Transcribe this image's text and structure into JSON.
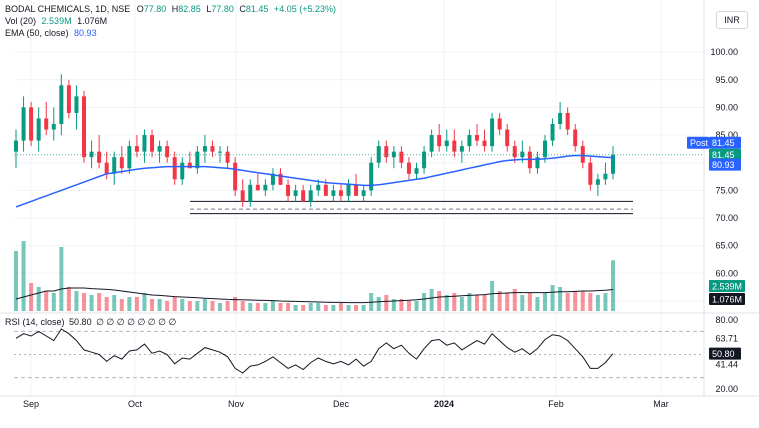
{
  "header": {
    "symbol": "BODAL CHEMICALS, 1D, NSE",
    "open_label": "O",
    "open": "77.80",
    "high_label": "H",
    "high": "82.85",
    "low_label": "L",
    "low": "77.80",
    "close_label": "C",
    "close": "81.45",
    "change": "+4.05 (+5.23%)",
    "vol_label": "Vol (20)",
    "vol_value": "2.539M",
    "vol_ma": "1.076M",
    "ema_label": "EMA (50, close)",
    "ema_value": "80.93",
    "rsi_label": "RSI (14, close)",
    "rsi_value": "50.80",
    "rsi_extra": "∅ ∅ ∅ ∅ ∅ ∅ ∅ ∅",
    "currency": "INR"
  },
  "colors": {
    "up": "#089981",
    "down": "#f23645",
    "ema": "#2962ff",
    "grid": "#f0f3fa",
    "text": "#131722",
    "badge_dark": "#131722"
  },
  "chart_data": [
    {
      "type": "candlestick",
      "name": "price",
      "y_ticks": [
        70,
        75,
        80,
        85,
        90,
        95,
        100,
        55,
        60,
        65
      ],
      "ylim": [
        53,
        104
      ],
      "x_labels": [
        "Sep",
        "Oct",
        "Nov",
        "Dec",
        "2024",
        "Feb",
        "Mar"
      ],
      "post_label": "Post",
      "post_value": "81.45",
      "last_close": "81.45",
      "ema_last": "80.93",
      "support_lines": [
        73.0,
        70.8
      ],
      "dashed_line": 71.6,
      "candles": [
        [
          82,
          86,
          79,
          84
        ],
        [
          84,
          92,
          82,
          90
        ],
        [
          90,
          91,
          83,
          84
        ],
        [
          84,
          90,
          82,
          88
        ],
        [
          88,
          91,
          85,
          86
        ],
        [
          86,
          90,
          84,
          87
        ],
        [
          87,
          96,
          85,
          94
        ],
        [
          94,
          95,
          88,
          89
        ],
        [
          89,
          94,
          86,
          92
        ],
        [
          92,
          93,
          80,
          81
        ],
        [
          81,
          84,
          79,
          82
        ],
        [
          82,
          85,
          79,
          80
        ],
        [
          80,
          82,
          77,
          78
        ],
        [
          78,
          82,
          76,
          81
        ],
        [
          81,
          83,
          78,
          79
        ],
        [
          79,
          84,
          78,
          83
        ],
        [
          83,
          85,
          81,
          82
        ],
        [
          82,
          86,
          80,
          85
        ],
        [
          85,
          86,
          81,
          82
        ],
        [
          82,
          84,
          80,
          83
        ],
        [
          83,
          84,
          80,
          81
        ],
        [
          81,
          82,
          76,
          77
        ],
        [
          77,
          81,
          76,
          80
        ],
        [
          80,
          82,
          79,
          79
        ],
        [
          79,
          83,
          78,
          82
        ],
        [
          82,
          85,
          80,
          83
        ],
        [
          83,
          84,
          81,
          82
        ],
        [
          82,
          83,
          80,
          82
        ],
        [
          82,
          83,
          79,
          80
        ],
        [
          80,
          81,
          74,
          75
        ],
        [
          75,
          77,
          72,
          73
        ],
        [
          73,
          77,
          72,
          76
        ],
        [
          76,
          78,
          75,
          75
        ],
        [
          75,
          77,
          74,
          76
        ],
        [
          76,
          79,
          75,
          78
        ],
        [
          78,
          79,
          76,
          76
        ],
        [
          76,
          77,
          73,
          74
        ],
        [
          74,
          76,
          73,
          75
        ],
        [
          75,
          76,
          73,
          73
        ],
        [
          73,
          76,
          72,
          75
        ],
        [
          75,
          77,
          74,
          76
        ],
        [
          76,
          77,
          74,
          74
        ],
        [
          74,
          76,
          73,
          75
        ],
        [
          75,
          76,
          73,
          74
        ],
        [
          74,
          77,
          73,
          76
        ],
        [
          76,
          78,
          74,
          74
        ],
        [
          74,
          76,
          73,
          75
        ],
        [
          75,
          81,
          74,
          80
        ],
        [
          80,
          84,
          79,
          83
        ],
        [
          83,
          84,
          80,
          81
        ],
        [
          81,
          83,
          79,
          82
        ],
        [
          82,
          83,
          79,
          80
        ],
        [
          80,
          81,
          77,
          78
        ],
        [
          78,
          80,
          77,
          79
        ],
        [
          79,
          83,
          78,
          82
        ],
        [
          82,
          86,
          81,
          85
        ],
        [
          85,
          87,
          82,
          83
        ],
        [
          83,
          86,
          82,
          84
        ],
        [
          84,
          86,
          81,
          82
        ],
        [
          82,
          84,
          80,
          83
        ],
        [
          83,
          86,
          82,
          85
        ],
        [
          85,
          87,
          83,
          84
        ],
        [
          84,
          86,
          82,
          83
        ],
        [
          83,
          89,
          82,
          88
        ],
        [
          88,
          89,
          85,
          86
        ],
        [
          86,
          87,
          82,
          83
        ],
        [
          83,
          84,
          80,
          81
        ],
        [
          81,
          84,
          80,
          82
        ],
        [
          82,
          83,
          78,
          79
        ],
        [
          79,
          82,
          78,
          81
        ],
        [
          81,
          85,
          80,
          84
        ],
        [
          84,
          88,
          83,
          87
        ],
        [
          87,
          91,
          86,
          89
        ],
        [
          89,
          90,
          85,
          86
        ],
        [
          86,
          87,
          82,
          83
        ],
        [
          83,
          84,
          79,
          80
        ],
        [
          80,
          81,
          75,
          76
        ],
        [
          76,
          78,
          74,
          77
        ],
        [
          77,
          80,
          76,
          78
        ],
        [
          78,
          83,
          77,
          81.45
        ]
      ],
      "ema": [
        72,
        72.5,
        73,
        73.5,
        74,
        74.5,
        75,
        75.5,
        76,
        76.5,
        77,
        77.5,
        78,
        78.2,
        78.4,
        78.6,
        78.8,
        79,
        79.1,
        79.2,
        79.3,
        79.3,
        79.3,
        79.3,
        79.3,
        79.3,
        79.2,
        79.1,
        79,
        78.8,
        78.6,
        78.4,
        78.2,
        78,
        77.8,
        77.6,
        77.4,
        77.2,
        77,
        76.8,
        76.6,
        76.4,
        76.3,
        76.2,
        76.1,
        76,
        75.9,
        75.9,
        76,
        76.2,
        76.4,
        76.6,
        76.8,
        77,
        77.2,
        77.5,
        77.8,
        78.1,
        78.4,
        78.7,
        79,
        79.3,
        79.6,
        79.9,
        80.2,
        80.4,
        80.5,
        80.6,
        80.6,
        80.6,
        80.7,
        80.8,
        81,
        81.2,
        81.3,
        81.3,
        81.2,
        81.1,
        81,
        80.93
      ]
    },
    {
      "type": "bar",
      "name": "volume",
      "badge_value": "2.539M",
      "ma_badge_value": "1.076M",
      "volume": [
        3.0,
        3.5,
        1.4,
        1.2,
        1.0,
        0.9,
        3.2,
        1.2,
        1.0,
        0.9,
        0.8,
        0.9,
        0.7,
        0.8,
        0.6,
        0.7,
        0.7,
        0.9,
        0.6,
        0.6,
        0.5,
        0.7,
        0.6,
        0.5,
        0.5,
        0.6,
        0.5,
        0.4,
        0.5,
        0.7,
        0.5,
        0.4,
        0.4,
        0.4,
        0.5,
        0.4,
        0.4,
        0.3,
        0.3,
        0.4,
        0.4,
        0.3,
        0.3,
        0.4,
        0.3,
        0.3,
        0.3,
        0.9,
        0.7,
        0.8,
        0.6,
        0.6,
        0.5,
        0.5,
        0.9,
        1.1,
        1.0,
        0.8,
        0.9,
        0.7,
        0.9,
        0.8,
        0.8,
        1.5,
        1.0,
        0.9,
        1.1,
        0.8,
        0.9,
        0.7,
        0.9,
        1.3,
        1.2,
        0.9,
        1.0,
        1.0,
        0.9,
        0.8,
        0.9,
        2.539
      ],
      "volume_ma": [
        0.6,
        0.7,
        0.8,
        0.9,
        1.0,
        1.0,
        1.1,
        1.15,
        1.15,
        1.15,
        1.12,
        1.1,
        1.08,
        1.05,
        1.0,
        0.95,
        0.9,
        0.85,
        0.8,
        0.78,
        0.75,
        0.72,
        0.7,
        0.68,
        0.66,
        0.64,
        0.62,
        0.6,
        0.58,
        0.57,
        0.56,
        0.55,
        0.54,
        0.53,
        0.52,
        0.5,
        0.49,
        0.48,
        0.47,
        0.46,
        0.45,
        0.44,
        0.43,
        0.43,
        0.42,
        0.42,
        0.42,
        0.44,
        0.46,
        0.48,
        0.5,
        0.52,
        0.54,
        0.56,
        0.6,
        0.65,
        0.7,
        0.72,
        0.74,
        0.76,
        0.78,
        0.8,
        0.82,
        0.86,
        0.88,
        0.9,
        0.92,
        0.92,
        0.92,
        0.92,
        0.92,
        0.94,
        0.96,
        0.96,
        0.98,
        1.0,
        1.0,
        1.02,
        1.04,
        1.076
      ]
    },
    {
      "type": "line",
      "name": "rsi",
      "y_ticks": [
        20.0,
        41.44,
        63.71,
        80.0
      ],
      "ylim": [
        15,
        85
      ],
      "bands": [
        30,
        50,
        70
      ],
      "current": "50.80",
      "rsi": [
        64,
        68,
        66,
        70,
        66,
        62,
        72,
        68,
        62,
        54,
        52,
        50,
        44,
        49,
        46,
        53,
        54,
        59,
        51,
        53,
        50,
        42,
        47,
        46,
        51,
        56,
        54,
        52,
        48,
        38,
        34,
        40,
        41,
        44,
        48,
        43,
        38,
        41,
        37,
        43,
        47,
        44,
        42,
        44,
        41,
        46,
        40,
        44,
        55,
        60,
        55,
        58,
        51,
        46,
        55,
        62,
        63,
        58,
        60,
        54,
        58,
        62,
        59,
        68,
        62,
        56,
        52,
        55,
        50,
        55,
        63,
        67,
        66,
        62,
        55,
        48,
        38,
        38,
        43,
        50.8
      ]
    }
  ]
}
